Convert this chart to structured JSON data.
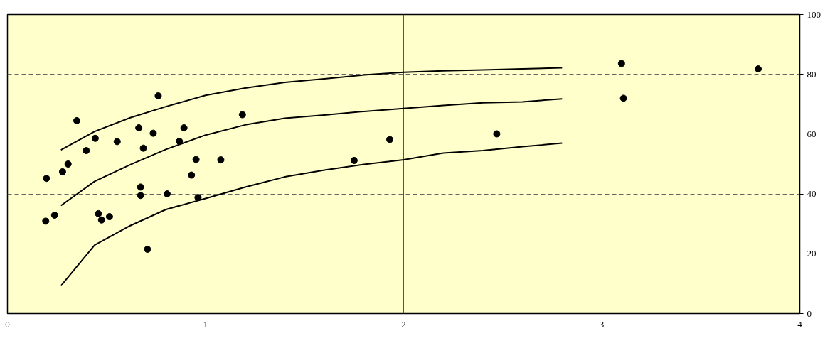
{
  "chart_data": {
    "type": "scatter",
    "xlim": [
      0,
      4
    ],
    "ylim": [
      0,
      100
    ],
    "xticks": [
      0,
      1,
      2,
      3,
      4
    ],
    "yticks": [
      0,
      20,
      40,
      60,
      80,
      100
    ],
    "grid": true,
    "series": [
      {
        "marker": "circle",
        "color": "#000000",
        "x": [
          0.197,
          0.193,
          0.238,
          0.278,
          0.306,
          0.35,
          0.398,
          0.443,
          0.459,
          0.475,
          0.515,
          0.554,
          0.663,
          0.672,
          0.672,
          0.686,
          0.707,
          0.736,
          0.761,
          0.806,
          0.868,
          0.891,
          0.929,
          0.952,
          0.962,
          1.077,
          1.186,
          1.75,
          1.93,
          2.47,
          3.1,
          3.11,
          3.79
        ],
        "values": [
          45.2,
          30.9,
          32.9,
          47.4,
          50.0,
          64.5,
          54.5,
          58.6,
          33.4,
          31.3,
          32.4,
          57.5,
          62.1,
          42.3,
          39.5,
          55.3,
          21.5,
          60.3,
          72.8,
          40.0,
          57.6,
          62.1,
          46.3,
          51.5,
          38.8,
          51.4,
          66.5,
          51.2,
          58.2,
          60.1,
          83.6,
          72.0,
          81.8
        ]
      },
      {
        "type": "line",
        "marker": "none",
        "line_style": "solid",
        "color": "#000000",
        "x": [
          0.27,
          0.44,
          0.62,
          0.8,
          1.0,
          1.2,
          1.4,
          1.6,
          1.8,
          2.0,
          2.2,
          2.4,
          2.6,
          2.8
        ],
        "values": [
          54.7,
          60.9,
          65.5,
          69.2,
          73.0,
          75.4,
          77.3,
          78.5,
          79.8,
          80.7,
          81.2,
          81.5,
          81.8,
          82.2
        ]
      },
      {
        "type": "line",
        "marker": "none",
        "line_style": "solid",
        "color": "#000000",
        "x": [
          0.27,
          0.44,
          0.62,
          0.8,
          1.0,
          1.2,
          1.4,
          1.6,
          1.8,
          2.0,
          2.2,
          2.4,
          2.6,
          2.8
        ],
        "values": [
          36.1,
          44.2,
          49.8,
          54.9,
          59.7,
          63.1,
          65.3,
          66.4,
          67.6,
          68.6,
          69.6,
          70.5,
          70.8,
          71.8
        ]
      },
      {
        "type": "line",
        "marker": "none",
        "line_style": "solid",
        "color": "#000000",
        "x": [
          0.27,
          0.44,
          0.62,
          0.8,
          1.0,
          1.2,
          1.4,
          1.6,
          1.8,
          2.0,
          2.2,
          2.4,
          2.6,
          2.8
        ],
        "values": [
          9.3,
          22.9,
          29.4,
          34.8,
          38.5,
          42.3,
          45.7,
          48.0,
          49.9,
          51.4,
          53.7,
          54.5,
          55.8,
          57.0
        ]
      }
    ]
  }
}
